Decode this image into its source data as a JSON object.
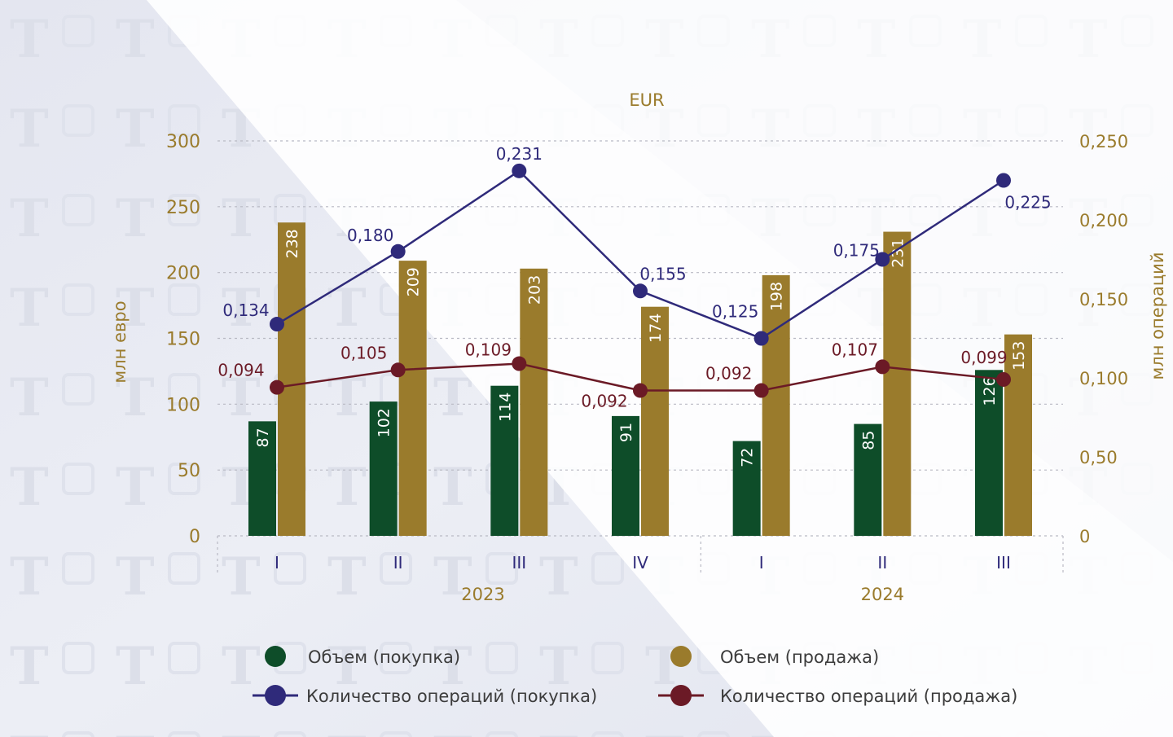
{
  "chart_data": {
    "type": "bar",
    "title": "EUR",
    "ylabel_left": "млн евро",
    "ylabel_right": "млн операций",
    "ylim_left": [
      0,
      300
    ],
    "yticks_left": [
      "0",
      "50",
      "100",
      "150",
      "200",
      "250",
      "300"
    ],
    "ylim_right": [
      0,
      0.25
    ],
    "yticks_right": [
      "0",
      "0,50",
      "0,100",
      "0,150",
      "0,200",
      "0,250"
    ],
    "categories": [
      "I",
      "II",
      "III",
      "IV",
      "I",
      "II",
      "III"
    ],
    "groups": [
      {
        "label": "2023",
        "count": 4
      },
      {
        "label": "2024",
        "count": 3
      }
    ],
    "grid": true,
    "legend_position": "bottom",
    "bar_series": [
      {
        "name": "Объем (покупка)",
        "color": "#0e4d29",
        "values": [
          87,
          102,
          114,
          91,
          72,
          85,
          126
        ]
      },
      {
        "name": "Объем (продажа)",
        "color": "#9a7b2c",
        "values": [
          238,
          209,
          203,
          174,
          198,
          231,
          153
        ]
      }
    ],
    "line_series": [
      {
        "name": "Количество операций (покупка)",
        "color": "#2f2a7a",
        "values": [
          0.134,
          0.18,
          0.231,
          0.155,
          0.125,
          0.175,
          0.225
        ],
        "labels": [
          "0,134",
          "0,180",
          "0,231",
          "0,155",
          "0,125",
          "0,175",
          "0,225"
        ]
      },
      {
        "name": "Количество операций (продажа)",
        "color": "#6b1a26",
        "values": [
          0.094,
          0.105,
          0.109,
          0.092,
          0.092,
          0.107,
          0.099
        ],
        "labels": [
          "0,094",
          "0,105",
          "0,109",
          "0,092",
          "0,092",
          "0,107",
          "0,099"
        ]
      }
    ]
  }
}
